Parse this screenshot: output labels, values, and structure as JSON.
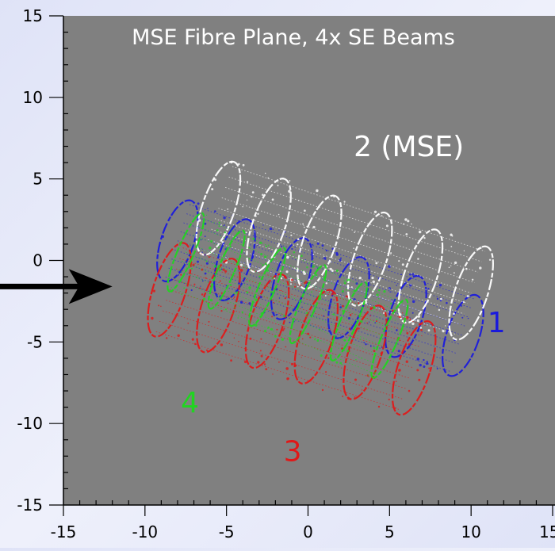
{
  "chart_data": {
    "type": "scatter",
    "title": "MSE Fibre Plane, 4x SE Beams",
    "xlabel": "",
    "ylabel": "",
    "xlim": [
      -15,
      15
    ],
    "ylim": [
      -15,
      15
    ],
    "x_ticks": [
      -15,
      -10,
      -5,
      0,
      5,
      10,
      15
    ],
    "y_ticks": [
      15,
      10,
      5,
      0,
      -5,
      -10,
      -15
    ],
    "x_tick_labels": [
      "-15",
      "-10",
      "-5",
      "0",
      "5",
      "10",
      "15"
    ],
    "y_tick_labels": [
      "15",
      "10",
      "5",
      "0",
      "-5",
      "-10",
      "-15"
    ],
    "grid": false,
    "legend": "none",
    "plot_background": "#808080",
    "axis_extends_past_right_edge": true,
    "arrow": {
      "from": [
        -19,
        -1.6
      ],
      "to": [
        -12,
        -1.6
      ],
      "color": "#000000"
    },
    "series": [
      {
        "name": "1",
        "color": "#1a1adc",
        "label_position": [
          11,
          -4.4
        ],
        "tube": {
          "start": [
            -8,
            1.2
          ],
          "end": [
            9.5,
            -4.6
          ],
          "radius_along": 1.0,
          "radius_across": 2.6,
          "rings": 6
        }
      },
      {
        "name": "2 (MSE)",
        "color": "#ffffff",
        "label_position": [
          2.8,
          6.4
        ],
        "tube": {
          "start": [
            -5.5,
            3.2
          ],
          "end": [
            10,
            -2
          ],
          "radius_along": 1.0,
          "radius_across": 3.0,
          "rings": 6
        }
      },
      {
        "name": "3",
        "color": "#e01818",
        "label_position": [
          -1.5,
          -12.3
        ],
        "tube": {
          "start": [
            -8.5,
            -1.8
          ],
          "end": [
            6.5,
            -6.6
          ],
          "radius_along": 1.0,
          "radius_across": 3.0,
          "rings": 6
        }
      },
      {
        "name": "4",
        "color": "#21d421",
        "label_position": [
          -7.8,
          -9.3
        ],
        "tube": {
          "start": [
            -7.5,
            0.5
          ],
          "end": [
            5,
            -4.8
          ],
          "radius_along": 0.5,
          "radius_across": 2.6,
          "rings": 6
        }
      }
    ]
  }
}
